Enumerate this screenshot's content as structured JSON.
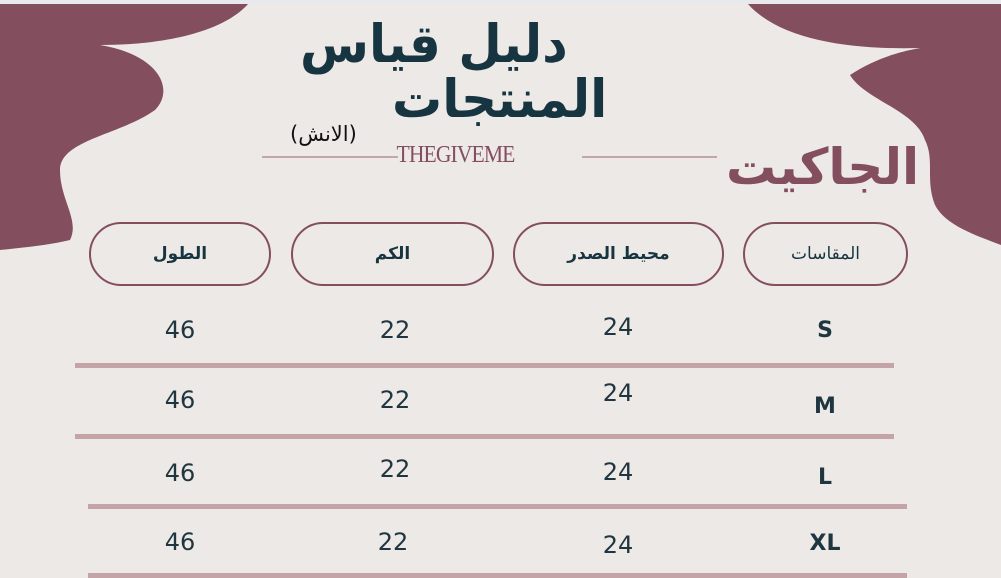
{
  "header": {
    "title_line1": "دليل قياس",
    "title_line2": "المنتجات",
    "unit": "(الانش)",
    "brand": "THEGIVEME",
    "category": "الجاكيت"
  },
  "colors": {
    "accent": "#834e5e",
    "text": "#173540",
    "background": "#ede9e6",
    "rule": "#c4a4a6"
  },
  "table": {
    "headers": [
      "المقاسات",
      "محيط الصدر",
      "الكم",
      "الطول"
    ],
    "rows": [
      {
        "size": "S",
        "chest": "24",
        "sleeve": "22",
        "length": "46"
      },
      {
        "size": "M",
        "chest": "24",
        "sleeve": "22",
        "length": "46"
      },
      {
        "size": "L",
        "chest": "24",
        "sleeve": "22",
        "length": "46"
      },
      {
        "size": "XL",
        "chest": "24",
        "sleeve": "22",
        "length": "46"
      }
    ]
  }
}
